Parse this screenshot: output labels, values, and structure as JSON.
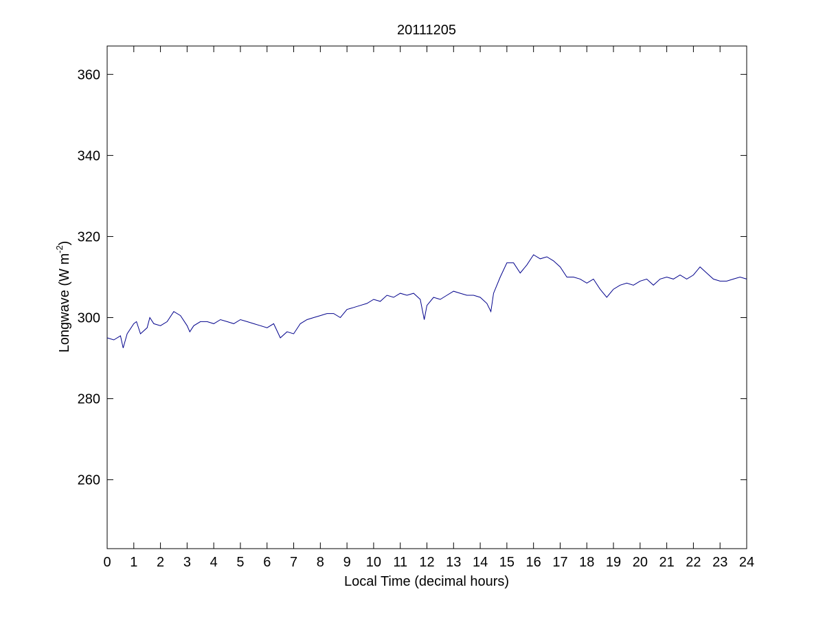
{
  "chart_data": {
    "type": "line",
    "title": "20111205",
    "xlabel": "Local Time (decimal hours)",
    "ylabel_main": "Longwave (W m",
    "ylabel_sup": "-2",
    "ylabel_close": ")",
    "xlim": [
      0,
      24
    ],
    "ylim": [
      243,
      367
    ],
    "xticks": [
      0,
      1,
      2,
      3,
      4,
      5,
      6,
      7,
      8,
      9,
      10,
      11,
      12,
      13,
      14,
      15,
      16,
      17,
      18,
      19,
      20,
      21,
      22,
      23,
      24
    ],
    "yticks": [
      260,
      280,
      300,
      320,
      340,
      360
    ],
    "grid": false,
    "line_color": "#00008b",
    "series": [
      {
        "x": [
          0,
          0.25,
          0.5,
          0.6,
          0.75,
          1.0,
          1.1,
          1.25,
          1.5,
          1.6,
          1.75,
          2.0,
          2.25,
          2.5,
          2.75,
          3.0,
          3.1,
          3.25,
          3.5,
          3.75,
          4.0,
          4.25,
          4.5,
          4.75,
          5.0,
          5.25,
          5.5,
          5.75,
          6.0,
          6.25,
          6.5,
          6.75,
          7.0,
          7.25,
          7.5,
          7.75,
          8.0,
          8.25,
          8.5,
          8.75,
          9.0,
          9.25,
          9.5,
          9.75,
          10.0,
          10.25,
          10.5,
          10.75,
          11.0,
          11.25,
          11.5,
          11.75,
          11.9,
          12.0,
          12.25,
          12.5,
          12.75,
          13.0,
          13.25,
          13.5,
          13.75,
          14.0,
          14.25,
          14.4,
          14.5,
          14.75,
          15.0,
          15.25,
          15.5,
          15.75,
          16.0,
          16.25,
          16.5,
          16.75,
          17.0,
          17.25,
          17.5,
          17.75,
          18.0,
          18.25,
          18.5,
          18.75,
          19.0,
          19.25,
          19.5,
          19.75,
          20.0,
          20.25,
          20.5,
          20.75,
          21.0,
          21.25,
          21.5,
          21.75,
          22.0,
          22.25,
          22.5,
          22.75,
          23.0,
          23.25,
          23.5,
          23.75,
          24.0
        ],
        "y": [
          295,
          294.5,
          295.5,
          292.5,
          296,
          298.5,
          299,
          296,
          297.5,
          300,
          298.5,
          298,
          299,
          301.5,
          300.5,
          298,
          296.5,
          298,
          299,
          299,
          298.5,
          299.5,
          299,
          298.5,
          299.5,
          299,
          298.5,
          298,
          297.5,
          298.5,
          295,
          296.5,
          296,
          298.5,
          299.5,
          300,
          300.5,
          301,
          301,
          300,
          302,
          302.5,
          303,
          303.5,
          304.5,
          304,
          305.5,
          305,
          306,
          305.5,
          306,
          304.5,
          299.5,
          303,
          305,
          304.5,
          305.5,
          306.5,
          306,
          305.5,
          305.5,
          305,
          303.5,
          301.5,
          306,
          310,
          313.5,
          313.5,
          311,
          313,
          315.5,
          314.5,
          315,
          314,
          312.5,
          310,
          310,
          309.5,
          308.5,
          309.5,
          307,
          305,
          307,
          308,
          308.5,
          308,
          309,
          309.5,
          308,
          309.5,
          310,
          309.5,
          310.5,
          309.5,
          310.5,
          312.5,
          311,
          309.5,
          309,
          309,
          309.5,
          310,
          309.5
        ]
      }
    ]
  }
}
